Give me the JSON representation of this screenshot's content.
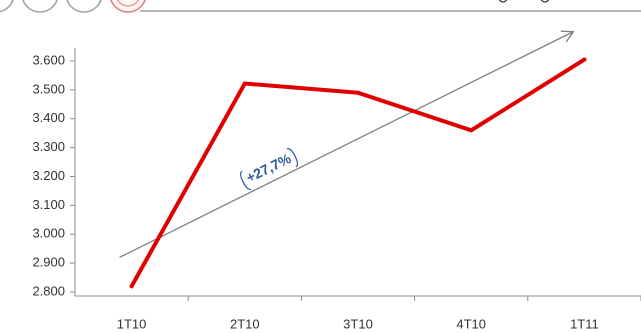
{
  "chart_data": {
    "type": "line",
    "categories": [
      "1T10",
      "2T10",
      "3T10",
      "4T10",
      "1T11"
    ],
    "series": [
      {
        "values": [
          2820,
          3522,
          3490,
          3360,
          3605
        ]
      }
    ],
    "y_ticks": [
      "2.800",
      "2.900",
      "3.000",
      "3.100",
      "3.200",
      "3.300",
      "3.400",
      "3.500",
      "3.600"
    ],
    "ylim": [
      2800,
      3650
    ],
    "trend_line": {
      "from": 2920,
      "to": 3700
    },
    "annotation": "+27,7%",
    "colors": {
      "series": "#e00000",
      "trend": "#808080",
      "annotation": "#2e5b9a"
    },
    "grid": false
  }
}
